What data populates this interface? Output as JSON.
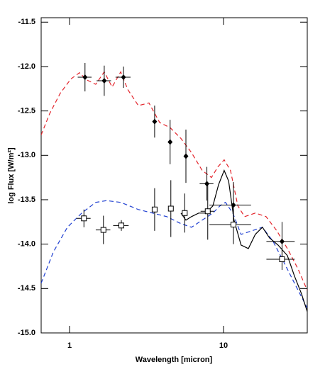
{
  "chart_data": {
    "type": "line",
    "xlabel": "Wavelength [micron]",
    "ylabel": "log Flux [W/m²]",
    "xscale": "log",
    "xlim": [
      0.654,
      35
    ],
    "ylim": [
      -15,
      -11.45
    ],
    "xticks": [
      1,
      10
    ],
    "yticks": [
      -11.5,
      {
        "value": -12,
        "label": "-12.0"
      },
      -12.5,
      {
        "value": -13,
        "label": "-13.0"
      },
      -13.5,
      {
        "value": -14,
        "label": "-14.0"
      },
      -14.5,
      {
        "value": -15,
        "label": "-15.0"
      }
    ],
    "series": [
      {
        "kind": "line",
        "style": "dashed",
        "color": "#e3242b",
        "x": [
          0.654,
          0.743,
          0.871,
          1.02,
          1.16,
          1.29,
          1.48,
          1.68,
          1.89,
          2.15,
          2.39,
          2.8,
          3.28,
          3.85,
          4.51,
          5.29,
          6.2,
          7.27,
          8.35,
          9.19,
          10.1,
          11.1,
          12.4,
          13.7,
          16.1,
          18.9,
          22.2,
          26,
          30.5,
          35
        ],
        "values": [
          -12.77,
          -12.53,
          -12.3,
          -12.14,
          -12.07,
          -12.15,
          -12.2,
          -12.06,
          -12.23,
          -12.06,
          -12.26,
          -12.44,
          -12.41,
          -12.63,
          -12.69,
          -12.81,
          -12.97,
          -13.17,
          -13.25,
          -13.13,
          -13.05,
          -13.17,
          -13.57,
          -13.69,
          -13.65,
          -13.69,
          -13.85,
          -14.05,
          -14.28,
          -14.52
        ]
      },
      {
        "kind": "line",
        "style": "dashed",
        "color": "#1f3fd1",
        "x": [
          0.654,
          0.784,
          0.969,
          1.2,
          1.48,
          1.74,
          2.15,
          2.8,
          3.46,
          4.28,
          5.29,
          6.2,
          7.27,
          8.53,
          9.48,
          10.3,
          11.5,
          13,
          15.3,
          17.9,
          21,
          24.6,
          28.9,
          35
        ],
        "values": [
          -14.44,
          -14.09,
          -13.81,
          -13.65,
          -13.53,
          -13.51,
          -13.53,
          -13.61,
          -13.65,
          -13.69,
          -13.77,
          -13.81,
          -13.73,
          -13.65,
          -13.57,
          -13.53,
          -13.65,
          -13.89,
          -13.85,
          -13.81,
          -13.97,
          -14.2,
          -14.44,
          -14.72
        ]
      },
      {
        "kind": "line",
        "style": "solid",
        "color": "#000000",
        "x": [
          5.29,
          5.7,
          6.2,
          6.9,
          7.67,
          8.53,
          9.29,
          10.1,
          10.8,
          11.7,
          13,
          14.5,
          16.1,
          17.9,
          19.9,
          22.6,
          26,
          28.9,
          32.1,
          35
        ],
        "values": [
          -13.65,
          -13.73,
          -13.69,
          -13.65,
          -13.65,
          -13.57,
          -13.33,
          -13.17,
          -13.29,
          -13.73,
          -14.01,
          -14.05,
          -13.89,
          -13.81,
          -13.93,
          -14.01,
          -14.13,
          -14.36,
          -14.56,
          -14.76
        ]
      },
      {
        "kind": "points",
        "marker": "diamond",
        "color": "#000000",
        "x": [
          1.26,
          1.68,
          2.24,
          3.57,
          4.5,
          5.7,
          7.8,
          11.6,
          24
        ],
        "values": [
          -12.12,
          -12.16,
          -12.12,
          -12.62,
          -12.85,
          -13.01,
          -13.32,
          -13.56,
          -13.97
        ],
        "xerr": [
          0.13,
          0.18,
          0.25,
          0,
          0,
          0,
          0.8,
          3.5,
          5
        ],
        "yerr": [
          0.16,
          0.17,
          0.12,
          0.18,
          0.25,
          0.3,
          0.19,
          0.26,
          0.22
        ]
      },
      {
        "kind": "points",
        "marker": "square",
        "color": "#000000",
        "x": [
          1.24,
          1.66,
          2.17,
          3.57,
          4.55,
          5.6,
          7.9,
          11.6,
          24
        ],
        "values": [
          -13.71,
          -13.84,
          -13.79,
          -13.61,
          -13.6,
          -13.65,
          -13.63,
          -13.78,
          -14.17
        ],
        "xerr": [
          0.13,
          0.18,
          0.25,
          0,
          0,
          0,
          0.8,
          3.5,
          5
        ],
        "yerr": [
          0.1,
          0.16,
          0.06,
          0.24,
          0.32,
          0.22,
          0.32,
          0.22,
          0.12
        ]
      }
    ]
  }
}
